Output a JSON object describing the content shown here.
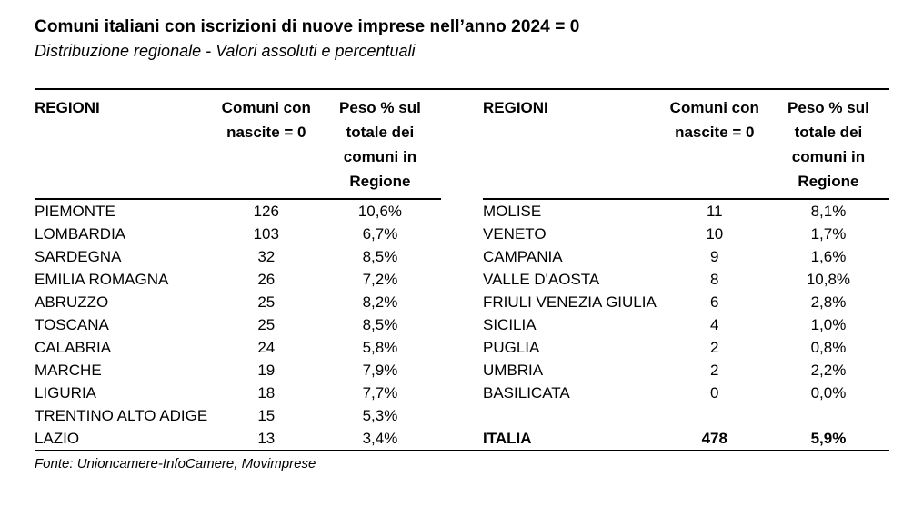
{
  "title": "Comuni italiani con iscrizioni di nuove imprese nell’anno 2024 = 0",
  "subtitle": "Distribuzione regionale - Valori assoluti e percentuali",
  "source": "Fonte: Unioncamere-InfoCamere, Movimprese",
  "table": {
    "headers": {
      "region": "REGIONI",
      "count": "Comuni con nascite = 0",
      "share": "Peso % sul totale dei comuni in Regione"
    },
    "left_rows": [
      {
        "region": "PIEMONTE",
        "count": "126",
        "share": "10,6%"
      },
      {
        "region": "LOMBARDIA",
        "count": "103",
        "share": "6,7%"
      },
      {
        "region": "SARDEGNA",
        "count": "32",
        "share": "8,5%"
      },
      {
        "region": "EMILIA ROMAGNA",
        "count": "26",
        "share": "7,2%"
      },
      {
        "region": "ABRUZZO",
        "count": "25",
        "share": "8,2%"
      },
      {
        "region": "TOSCANA",
        "count": "25",
        "share": "8,5%"
      },
      {
        "region": "CALABRIA",
        "count": "24",
        "share": "5,8%"
      },
      {
        "region": "MARCHE",
        "count": "19",
        "share": "7,9%"
      },
      {
        "region": "LIGURIA",
        "count": "18",
        "share": "7,7%"
      },
      {
        "region": "TRENTINO ALTO ADIGE",
        "count": "15",
        "share": "5,3%"
      },
      {
        "region": "LAZIO",
        "count": "13",
        "share": "3,4%"
      }
    ],
    "right_rows": [
      {
        "region": "MOLISE",
        "count": "11",
        "share": "8,1%"
      },
      {
        "region": "VENETO",
        "count": "10",
        "share": "1,7%"
      },
      {
        "region": "CAMPANIA",
        "count": "9",
        "share": "1,6%"
      },
      {
        "region": "VALLE D'AOSTA",
        "count": "8",
        "share": "10,8%"
      },
      {
        "region": "FRIULI VENEZIA GIULIA",
        "count": "6",
        "share": "2,8%"
      },
      {
        "region": "SICILIA",
        "count": "4",
        "share": "1,0%"
      },
      {
        "region": "PUGLIA",
        "count": "2",
        "share": "0,8%"
      },
      {
        "region": "UMBRIA",
        "count": "2",
        "share": "2,2%"
      },
      {
        "region": "BASILICATA",
        "count": "0",
        "share": "0,0%"
      }
    ],
    "total_row": {
      "region": "ITALIA",
      "count": "478",
      "share": "5,9%"
    }
  },
  "chart_data": {
    "type": "table",
    "title": "Comuni italiani con iscrizioni di nuove imprese nell’anno 2024 = 0",
    "subtitle": "Distribuzione regionale - Valori assoluti e percentuali",
    "columns": [
      "REGIONI",
      "Comuni con nascite = 0",
      "Peso % sul totale dei comuni in Regione"
    ],
    "rows": [
      [
        "PIEMONTE",
        126,
        "10,6%"
      ],
      [
        "LOMBARDIA",
        103,
        "6,7%"
      ],
      [
        "SARDEGNA",
        32,
        "8,5%"
      ],
      [
        "EMILIA ROMAGNA",
        26,
        "7,2%"
      ],
      [
        "ABRUZZO",
        25,
        "8,2%"
      ],
      [
        "TOSCANA",
        25,
        "8,5%"
      ],
      [
        "CALABRIA",
        24,
        "5,8%"
      ],
      [
        "MARCHE",
        19,
        "7,9%"
      ],
      [
        "LIGURIA",
        18,
        "7,7%"
      ],
      [
        "TRENTINO ALTO ADIGE",
        15,
        "5,3%"
      ],
      [
        "LAZIO",
        13,
        "3,4%"
      ],
      [
        "MOLISE",
        11,
        "8,1%"
      ],
      [
        "VENETO",
        10,
        "1,7%"
      ],
      [
        "CAMPANIA",
        9,
        "1,6%"
      ],
      [
        "VALLE D'AOSTA",
        8,
        "10,8%"
      ],
      [
        "FRIULI VENEZIA GIULIA",
        6,
        "2,8%"
      ],
      [
        "SICILIA",
        4,
        "1,0%"
      ],
      [
        "PUGLIA",
        2,
        "0,8%"
      ],
      [
        "UMBRIA",
        2,
        "2,2%"
      ],
      [
        "BASILICATA",
        0,
        "0,0%"
      ],
      [
        "ITALIA",
        478,
        "5,9%"
      ]
    ],
    "source": "Fonte: Unioncamere-InfoCamere, Movimprese",
    "layout": "two side-by-side column groups, bold total row ITALIA aligned with last left row"
  }
}
